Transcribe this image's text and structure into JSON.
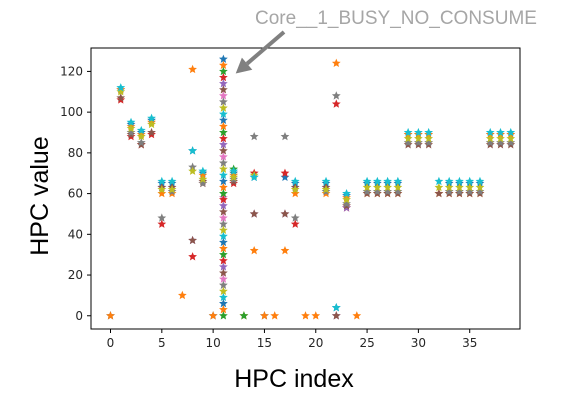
{
  "chart_data": {
    "type": "scatter",
    "title": "",
    "xlabel": "HPC index",
    "ylabel": "HPC value",
    "xlim": [
      -1.9,
      39.9
    ],
    "ylim": [
      -6.5,
      131.5
    ],
    "xticks": [
      0,
      5,
      10,
      15,
      20,
      25,
      30,
      35
    ],
    "yticks": [
      0,
      20,
      40,
      60,
      80,
      100,
      120
    ],
    "grid": false,
    "legend": "none",
    "marker": "star",
    "annotation": {
      "text": "Core__1_BUSY_NO_CONSUME",
      "arrow_target": {
        "x": 12.2,
        "y": 119
      }
    },
    "series": [
      {
        "color": "#1f77b4",
        "points": [
          [
            0,
            0
          ],
          [
            1,
            111
          ],
          [
            2,
            94
          ],
          [
            3,
            90
          ],
          [
            4,
            96
          ],
          [
            5,
            65
          ],
          [
            6,
            65
          ],
          [
            8,
            81
          ],
          [
            9,
            70
          ],
          [
            10,
            0
          ],
          [
            12,
            70
          ],
          [
            14,
            68
          ],
          [
            15,
            0
          ],
          [
            17,
            68
          ],
          [
            18,
            65
          ],
          [
            21,
            65
          ],
          [
            22,
            4
          ],
          [
            23,
            59
          ],
          [
            25,
            65
          ],
          [
            26,
            65
          ],
          [
            27,
            65
          ],
          [
            28,
            65
          ],
          [
            29,
            89
          ],
          [
            30,
            89
          ],
          [
            31,
            89
          ],
          [
            33,
            65
          ],
          [
            34,
            65
          ],
          [
            35,
            65
          ],
          [
            36,
            65
          ],
          [
            37,
            89
          ],
          [
            38,
            89
          ],
          [
            39,
            89
          ]
        ]
      },
      {
        "color": "#ff7f0e",
        "points": [
          [
            0,
            0
          ],
          [
            1,
            111
          ],
          [
            2,
            93
          ],
          [
            3,
            89
          ],
          [
            4,
            95
          ],
          [
            5,
            60
          ],
          [
            6,
            60
          ],
          [
            7,
            10
          ],
          [
            8,
            121
          ],
          [
            9,
            69
          ],
          [
            10,
            0
          ],
          [
            12,
            69
          ],
          [
            13,
            0
          ],
          [
            14,
            32
          ],
          [
            15,
            0
          ],
          [
            16,
            0
          ],
          [
            17,
            32
          ],
          [
            18,
            60
          ],
          [
            19,
            0
          ],
          [
            20,
            0
          ],
          [
            21,
            60
          ],
          [
            22,
            124
          ],
          [
            23,
            58
          ],
          [
            24,
            0
          ],
          [
            25,
            60
          ],
          [
            26,
            60
          ],
          [
            27,
            60
          ],
          [
            28,
            60
          ],
          [
            29,
            89
          ],
          [
            30,
            89
          ],
          [
            31,
            89
          ],
          [
            32,
            60
          ],
          [
            33,
            60
          ],
          [
            34,
            60
          ],
          [
            35,
            60
          ],
          [
            36,
            60
          ],
          [
            37,
            89
          ],
          [
            38,
            89
          ],
          [
            39,
            89
          ]
        ]
      },
      {
        "color": "#2ca02c",
        "points": [
          [
            12,
            72
          ],
          [
            13,
            0
          ]
        ]
      },
      {
        "color": "#d62728",
        "points": [
          [
            1,
            106
          ],
          [
            2,
            88
          ],
          [
            3,
            84
          ],
          [
            4,
            89
          ],
          [
            5,
            45
          ],
          [
            8,
            29
          ],
          [
            9,
            65
          ],
          [
            12,
            65
          ],
          [
            14,
            70
          ],
          [
            17,
            70
          ],
          [
            18,
            45
          ],
          [
            22,
            104
          ],
          [
            23,
            53
          ]
        ]
      },
      {
        "color": "#9467bd",
        "points": [
          [
            5,
            63
          ],
          [
            8,
            37
          ],
          [
            14,
            50
          ],
          [
            17,
            50
          ],
          [
            22,
            0
          ],
          [
            23,
            53
          ]
        ]
      },
      {
        "color": "#8c564b",
        "points": [
          [
            1,
            107
          ],
          [
            2,
            89
          ],
          [
            3,
            84
          ],
          [
            4,
            90
          ],
          [
            5,
            63
          ],
          [
            6,
            63
          ],
          [
            8,
            37
          ],
          [
            9,
            66
          ],
          [
            12,
            66
          ],
          [
            14,
            50
          ],
          [
            17,
            50
          ],
          [
            18,
            63
          ],
          [
            21,
            63
          ],
          [
            22,
            0
          ],
          [
            23,
            54
          ],
          [
            25,
            60
          ],
          [
            26,
            60
          ],
          [
            27,
            60
          ],
          [
            28,
            60
          ],
          [
            29,
            84
          ],
          [
            30,
            84
          ],
          [
            31,
            84
          ],
          [
            32,
            60
          ],
          [
            33,
            60
          ],
          [
            34,
            60
          ],
          [
            35,
            60
          ],
          [
            36,
            60
          ],
          [
            37,
            84
          ],
          [
            38,
            84
          ],
          [
            39,
            84
          ]
        ]
      },
      {
        "color": "#e377c2",
        "points": [
          [
            11,
            58
          ]
        ]
      },
      {
        "color": "#7f7f7f",
        "points": [
          [
            2,
            90
          ],
          [
            3,
            85
          ],
          [
            5,
            48
          ],
          [
            6,
            61
          ],
          [
            8,
            73
          ],
          [
            9,
            65
          ],
          [
            12,
            67
          ],
          [
            14,
            88
          ],
          [
            17,
            88
          ],
          [
            18,
            48
          ],
          [
            21,
            61
          ],
          [
            22,
            108
          ],
          [
            23,
            55
          ],
          [
            25,
            61
          ],
          [
            26,
            61
          ],
          [
            27,
            61
          ],
          [
            28,
            61
          ],
          [
            29,
            85
          ],
          [
            30,
            85
          ],
          [
            31,
            85
          ],
          [
            33,
            61
          ],
          [
            34,
            61
          ],
          [
            35,
            61
          ],
          [
            36,
            61
          ],
          [
            37,
            85
          ],
          [
            38,
            85
          ],
          [
            39,
            85
          ]
        ]
      },
      {
        "color": "#bcbd22",
        "points": [
          [
            1,
            110
          ],
          [
            2,
            92
          ],
          [
            3,
            88
          ],
          [
            4,
            94
          ],
          [
            5,
            62
          ],
          [
            6,
            62
          ],
          [
            8,
            71
          ],
          [
            9,
            67
          ],
          [
            12,
            68
          ],
          [
            14,
            69
          ],
          [
            18,
            62
          ],
          [
            21,
            62
          ],
          [
            23,
            57
          ],
          [
            25,
            63
          ],
          [
            26,
            63
          ],
          [
            27,
            63
          ],
          [
            28,
            63
          ],
          [
            29,
            87
          ],
          [
            30,
            87
          ],
          [
            31,
            87
          ],
          [
            32,
            63
          ],
          [
            33,
            63
          ],
          [
            34,
            63
          ],
          [
            35,
            63
          ],
          [
            36,
            63
          ],
          [
            37,
            87
          ],
          [
            38,
            87
          ],
          [
            39,
            87
          ]
        ]
      },
      {
        "color": "#17becf",
        "points": [
          [
            1,
            112
          ],
          [
            2,
            95
          ],
          [
            3,
            91
          ],
          [
            4,
            97
          ],
          [
            5,
            66
          ],
          [
            6,
            66
          ],
          [
            8,
            81
          ],
          [
            9,
            71
          ],
          [
            12,
            71
          ],
          [
            14,
            68
          ],
          [
            18,
            66
          ],
          [
            21,
            66
          ],
          [
            22,
            4
          ],
          [
            23,
            60
          ],
          [
            25,
            66
          ],
          [
            26,
            66
          ],
          [
            27,
            66
          ],
          [
            28,
            66
          ],
          [
            29,
            90
          ],
          [
            30,
            90
          ],
          [
            31,
            90
          ],
          [
            32,
            66
          ],
          [
            33,
            66
          ],
          [
            34,
            66
          ],
          [
            35,
            66
          ],
          [
            36,
            66
          ],
          [
            37,
            90
          ],
          [
            38,
            90
          ],
          [
            39,
            90
          ]
        ]
      }
    ],
    "column_11": {
      "x": 11,
      "values": [
        126,
        123,
        120,
        117,
        114,
        111,
        108,
        105,
        102,
        99,
        96,
        93,
        90,
        87,
        84,
        81,
        78,
        75,
        72,
        69,
        66,
        63,
        60,
        57,
        54,
        51,
        48,
        45,
        42,
        39,
        36,
        33,
        30,
        27,
        24,
        21,
        18,
        15,
        12,
        9,
        6,
        3,
        0
      ],
      "colors": [
        "#1f77b4",
        "#ff7f0e",
        "#2ca02c",
        "#d62728",
        "#9467bd",
        "#8c564b",
        "#e377c2",
        "#7f7f7f",
        "#bcbd22",
        "#17becf"
      ]
    }
  }
}
